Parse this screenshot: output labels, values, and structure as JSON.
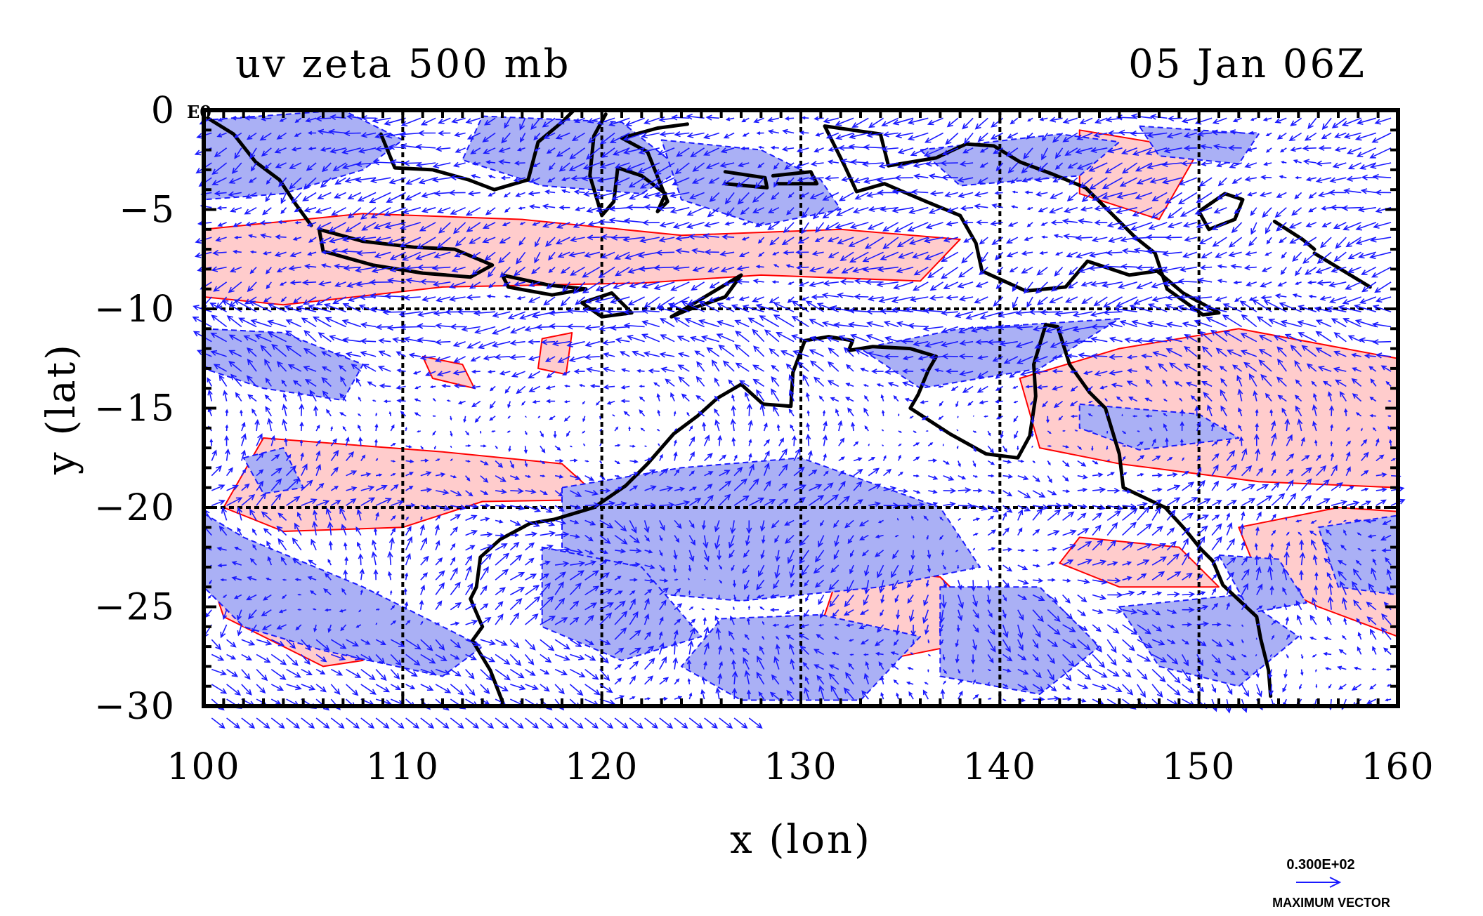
{
  "chart_data": {
    "type": "vector-contour-map",
    "title_left": "uv zeta 500 mb",
    "title_right": "05 Jan 06Z",
    "xlabel": "x (lon)",
    "ylabel": "y (lat)",
    "xlim": [
      100,
      160
    ],
    "ylim": [
      -30,
      0
    ],
    "x_ticks": [
      100,
      110,
      120,
      130,
      140,
      150,
      160
    ],
    "y_ticks": [
      0,
      -5,
      -10,
      -15,
      -20,
      -25,
      -30
    ],
    "x_tick_labels": [
      "100",
      "110",
      "120",
      "130",
      "140",
      "150",
      "160"
    ],
    "y_tick_labels": [
      "0",
      "−5",
      "−10",
      "−15",
      "−20",
      "−25",
      "−30"
    ],
    "corner_label": "E0",
    "grid_x": [
      110,
      120,
      130,
      140,
      150
    ],
    "grid_y": [
      -10,
      -20
    ],
    "grid": true,
    "vector_key": {
      "value_label": "0.300E+02",
      "caption": "MAXIMUM VECTOR"
    },
    "colors": {
      "vector": "#1a1aff",
      "positive_contour": "#ff0000",
      "positive_fill": "#ffcccc",
      "negative_contour": "#1a1aff",
      "negative_fill": "#aab0f5",
      "coastline": "#000000",
      "grid": "#000000"
    },
    "positive_regions": [
      [
        [
          100,
          -6
        ],
        [
          108,
          -5.2
        ],
        [
          116,
          -5.5
        ],
        [
          124,
          -6.3
        ],
        [
          132,
          -6
        ],
        [
          138,
          -6.5
        ],
        [
          136,
          -8.6
        ],
        [
          128,
          -8.3
        ],
        [
          122,
          -8.7
        ],
        [
          112,
          -8.9
        ],
        [
          104,
          -9.8
        ],
        [
          100,
          -9.4
        ]
      ],
      [
        [
          103,
          -16.5
        ],
        [
          112,
          -17.2
        ],
        [
          118,
          -17.8
        ],
        [
          120,
          -19.6
        ],
        [
          114,
          -19.7
        ],
        [
          110,
          -21
        ],
        [
          104,
          -21.2
        ],
        [
          101,
          -20
        ]
      ],
      [
        [
          100,
          -22.5
        ],
        [
          102,
          -23.5
        ],
        [
          108,
          -27.7
        ],
        [
          106,
          -28
        ],
        [
          101,
          -25.5
        ]
      ],
      [
        [
          141,
          -13.5
        ],
        [
          146,
          -12
        ],
        [
          152,
          -11
        ],
        [
          160,
          -12.5
        ],
        [
          160,
          -19
        ],
        [
          153,
          -18.7
        ],
        [
          146,
          -17.8
        ],
        [
          142,
          -17
        ]
      ],
      [
        [
          152,
          -21
        ],
        [
          157,
          -20
        ],
        [
          160,
          -20.2
        ],
        [
          160,
          -26.5
        ],
        [
          156,
          -25
        ],
        [
          153,
          -23.5
        ]
      ],
      [
        [
          144,
          -1
        ],
        [
          150,
          -2
        ],
        [
          148,
          -5.5
        ],
        [
          144,
          -4.2
        ]
      ],
      [
        [
          132,
          -23
        ],
        [
          137,
          -23.5
        ],
        [
          140,
          -26.5
        ],
        [
          135,
          -27.5
        ],
        [
          131,
          -26
        ]
      ],
      [
        [
          144,
          -21.5
        ],
        [
          149,
          -22
        ],
        [
          151,
          -24
        ],
        [
          146,
          -24
        ],
        [
          143,
          -22.8
        ]
      ],
      [
        [
          111,
          -12.4
        ],
        [
          113,
          -12.8
        ],
        [
          113.6,
          -14
        ],
        [
          111.5,
          -13.5
        ]
      ],
      [
        [
          117,
          -11.5
        ],
        [
          118.5,
          -11.2
        ],
        [
          118.2,
          -13.3
        ],
        [
          116.8,
          -13
        ]
      ]
    ],
    "negative_regions": [
      [
        [
          100,
          -0.5
        ],
        [
          107,
          0
        ],
        [
          110,
          -1.5
        ],
        [
          108,
          -3
        ],
        [
          104,
          -4.2
        ],
        [
          100,
          -4.5
        ]
      ],
      [
        [
          114,
          -0.3
        ],
        [
          121,
          -0.6
        ],
        [
          124,
          -3
        ],
        [
          122,
          -4.2
        ],
        [
          117,
          -3.8
        ],
        [
          113,
          -2.5
        ]
      ],
      [
        [
          123,
          -1.5
        ],
        [
          128,
          -2
        ],
        [
          131,
          -3.5
        ],
        [
          132,
          -5
        ],
        [
          128,
          -5.8
        ],
        [
          124,
          -4.5
        ]
      ],
      [
        [
          136,
          -2
        ],
        [
          143,
          -1.2
        ],
        [
          146,
          -1.6
        ],
        [
          144,
          -3.3
        ],
        [
          138,
          -3.8
        ]
      ],
      [
        [
          147,
          -0.8
        ],
        [
          153,
          -1.2
        ],
        [
          152,
          -2.7
        ],
        [
          148,
          -2.3
        ]
      ],
      [
        [
          100,
          -11
        ],
        [
          104,
          -11.2
        ],
        [
          108,
          -12.8
        ],
        [
          107,
          -14.6
        ],
        [
          103,
          -14
        ],
        [
          100,
          -13
        ]
      ],
      [
        [
          133,
          -12
        ],
        [
          138,
          -11
        ],
        [
          146,
          -10.5
        ],
        [
          142,
          -13
        ],
        [
          136,
          -14
        ]
      ],
      [
        [
          100,
          -20.3
        ],
        [
          102,
          -21.5
        ],
        [
          108,
          -24
        ],
        [
          114,
          -27
        ],
        [
          112,
          -28.5
        ],
        [
          106,
          -27.2
        ],
        [
          102,
          -26
        ],
        [
          100,
          -24
        ]
      ],
      [
        [
          118,
          -19
        ],
        [
          124,
          -18
        ],
        [
          130,
          -17.5
        ],
        [
          137,
          -20
        ],
        [
          139,
          -23
        ],
        [
          134,
          -24
        ],
        [
          127,
          -24.7
        ],
        [
          121,
          -24.2
        ],
        [
          118,
          -22
        ]
      ],
      [
        [
          117,
          -22
        ],
        [
          122,
          -23
        ],
        [
          125,
          -26.5
        ],
        [
          121,
          -27.7
        ],
        [
          117,
          -26
        ]
      ],
      [
        [
          126,
          -25.6
        ],
        [
          131,
          -25.4
        ],
        [
          136,
          -26.5
        ],
        [
          133,
          -29.7
        ],
        [
          127,
          -29.7
        ],
        [
          124,
          -28
        ]
      ],
      [
        [
          137,
          -24
        ],
        [
          142,
          -24
        ],
        [
          145,
          -27
        ],
        [
          142,
          -29.4
        ],
        [
          137,
          -28.5
        ]
      ],
      [
        [
          146,
          -25
        ],
        [
          152,
          -24.4
        ],
        [
          155,
          -26.5
        ],
        [
          152,
          -29
        ],
        [
          148,
          -28
        ]
      ],
      [
        [
          151,
          -22.4
        ],
        [
          154,
          -22.6
        ],
        [
          155.4,
          -24.8
        ],
        [
          152.6,
          -25.3
        ]
      ],
      [
        [
          156,
          -21
        ],
        [
          160,
          -20.4
        ],
        [
          160,
          -24.4
        ],
        [
          157,
          -24
        ]
      ],
      [
        [
          144,
          -14.8
        ],
        [
          150,
          -15.3
        ],
        [
          152,
          -16.5
        ],
        [
          147,
          -17.1
        ],
        [
          144,
          -16
        ]
      ],
      [
        [
          102,
          -17.5
        ],
        [
          104,
          -17
        ],
        [
          105,
          -19
        ],
        [
          103,
          -19.3
        ]
      ]
    ],
    "coastlines": [
      [
        [
          100.2,
          -0.4
        ],
        [
          101.5,
          -1.2
        ],
        [
          102.6,
          -2.6
        ],
        [
          103.8,
          -3.5
        ],
        [
          104.6,
          -4.7
        ],
        [
          105.4,
          -5.8
        ]
      ],
      [
        [
          105.8,
          -6
        ],
        [
          108,
          -6.6
        ],
        [
          110.6,
          -6.9
        ],
        [
          112.6,
          -7
        ],
        [
          114.5,
          -7.8
        ],
        [
          113.4,
          -8.4
        ],
        [
          111,
          -8.2
        ],
        [
          108.5,
          -7.8
        ],
        [
          106,
          -7.1
        ],
        [
          105.8,
          -6
        ]
      ],
      [
        [
          108.9,
          -1.2
        ],
        [
          109.6,
          -2.9
        ],
        [
          111.5,
          -3
        ],
        [
          113.3,
          -3.5
        ],
        [
          114.6,
          -4
        ],
        [
          116.3,
          -3.5
        ],
        [
          116.8,
          -1.6
        ],
        [
          118,
          -0.6
        ],
        [
          118.6,
          0
        ]
      ],
      [
        [
          120.2,
          -0.2
        ],
        [
          119.6,
          -1.3
        ],
        [
          119.4,
          -3.3
        ],
        [
          120,
          -5.3
        ],
        [
          120.6,
          -4.6
        ],
        [
          120.8,
          -2.9
        ],
        [
          122,
          -3.3
        ],
        [
          123.2,
          -4.2
        ],
        [
          122.8,
          -5.1
        ],
        [
          123.3,
          -4.6
        ],
        [
          122.3,
          -2.1
        ],
        [
          121,
          -1.4
        ],
        [
          122.8,
          -0.9
        ],
        [
          124.3,
          -0.7
        ]
      ],
      [
        [
          115,
          -8.3
        ],
        [
          117.3,
          -8.8
        ],
        [
          119.2,
          -9
        ],
        [
          117.5,
          -9.3
        ],
        [
          115.3,
          -8.9
        ],
        [
          115,
          -8.3
        ]
      ],
      [
        [
          119,
          -9.7
        ],
        [
          120.5,
          -9.2
        ],
        [
          121.5,
          -10.2
        ],
        [
          120,
          -10.4
        ],
        [
          119,
          -9.7
        ]
      ],
      [
        [
          123.5,
          -10.4
        ],
        [
          125.5,
          -9.2
        ],
        [
          127,
          -8.3
        ],
        [
          126.2,
          -9.4
        ],
        [
          124.2,
          -10.1
        ],
        [
          123.5,
          -10.4
        ]
      ],
      [
        [
          126.2,
          -3.1
        ],
        [
          128.2,
          -3.4
        ],
        [
          128.3,
          -3.9
        ],
        [
          126.2,
          -3.7
        ]
      ],
      [
        [
          128.6,
          -3.3
        ],
        [
          130.5,
          -3.1
        ],
        [
          130.8,
          -3.7
        ],
        [
          128.8,
          -3.7
        ]
      ],
      [
        [
          131.2,
          -0.8
        ],
        [
          132.6,
          -1
        ],
        [
          134,
          -1.2
        ],
        [
          134.4,
          -2.8
        ],
        [
          136.8,
          -2.4
        ],
        [
          138.3,
          -1.7
        ],
        [
          139.7,
          -1.8
        ],
        [
          141,
          -2.6
        ],
        [
          142.6,
          -3.2
        ],
        [
          144.3,
          -3.9
        ],
        [
          145.5,
          -5.1
        ],
        [
          146.8,
          -6.4
        ],
        [
          147.8,
          -7.2
        ],
        [
          148.4,
          -9
        ],
        [
          150.2,
          -10.3
        ],
        [
          151,
          -10.2
        ],
        [
          149.2,
          -9.2
        ],
        [
          147.9,
          -8.1
        ],
        [
          146.5,
          -8.3
        ],
        [
          144.4,
          -7.6
        ],
        [
          143.3,
          -8.9
        ],
        [
          141.3,
          -9.1
        ],
        [
          139.1,
          -8.1
        ],
        [
          138.8,
          -6.7
        ],
        [
          138,
          -5.3
        ],
        [
          136.3,
          -4.6
        ],
        [
          134.2,
          -3.7
        ],
        [
          132.8,
          -4.1
        ],
        [
          132.2,
          -2.8
        ],
        [
          131.2,
          -0.8
        ]
      ],
      [
        [
          150,
          -5.1
        ],
        [
          151.3,
          -4.2
        ],
        [
          152.2,
          -4.5
        ],
        [
          151.8,
          -5.5
        ],
        [
          150.5,
          -6
        ],
        [
          150,
          -5.1
        ]
      ],
      [
        [
          153.8,
          -5.6
        ],
        [
          155.2,
          -6.5
        ],
        [
          155.8,
          -7
        ]
      ],
      [
        [
          155.8,
          -7.2
        ],
        [
          158.6,
          -8.9
        ]
      ],
      [
        [
          130.2,
          -11.6
        ],
        [
          131.4,
          -11.4
        ],
        [
          132.6,
          -11.6
        ],
        [
          132.4,
          -12.1
        ],
        [
          133.6,
          -11.9
        ],
        [
          135.5,
          -12
        ],
        [
          136.8,
          -12.4
        ],
        [
          136.4,
          -13.1
        ],
        [
          135.9,
          -14.3
        ],
        [
          135.5,
          -15
        ],
        [
          137.5,
          -16.3
        ],
        [
          139.3,
          -17.3
        ],
        [
          140.9,
          -17.5
        ],
        [
          141.5,
          -16.4
        ],
        [
          141.8,
          -14.4
        ],
        [
          141.7,
          -12.8
        ],
        [
          142.3,
          -10.8
        ],
        [
          142.9,
          -10.9
        ],
        [
          143.5,
          -12.8
        ],
        [
          144.5,
          -14.2
        ],
        [
          145.3,
          -15
        ],
        [
          146,
          -17.3
        ],
        [
          146.2,
          -19
        ],
        [
          148.3,
          -20
        ],
        [
          149.3,
          -21.1
        ],
        [
          150.1,
          -22.1
        ],
        [
          150.7,
          -22.7
        ],
        [
          151.2,
          -23.9
        ],
        [
          152.9,
          -25.5
        ],
        [
          153.1,
          -26.6
        ],
        [
          153.5,
          -28.2
        ],
        [
          153.6,
          -29.5
        ]
      ],
      [
        [
          130.2,
          -11.6
        ],
        [
          129.6,
          -13.2
        ],
        [
          129.5,
          -14.9
        ],
        [
          128.1,
          -14.8
        ],
        [
          127,
          -13.8
        ],
        [
          125.8,
          -14.5
        ],
        [
          124.8,
          -15.4
        ],
        [
          123.6,
          -16.3
        ],
        [
          122.3,
          -17.8
        ],
        [
          121.2,
          -18.9
        ],
        [
          119.6,
          -20
        ],
        [
          117.6,
          -20.6
        ],
        [
          116.4,
          -20.8
        ],
        [
          114.9,
          -21.6
        ],
        [
          113.9,
          -22.5
        ],
        [
          113.7,
          -24
        ],
        [
          113.4,
          -24.6
        ],
        [
          114,
          -26
        ],
        [
          113.5,
          -26.7
        ],
        [
          114.4,
          -28.2
        ],
        [
          114.9,
          -29.5
        ],
        [
          115.1,
          -30
        ]
      ]
    ]
  }
}
